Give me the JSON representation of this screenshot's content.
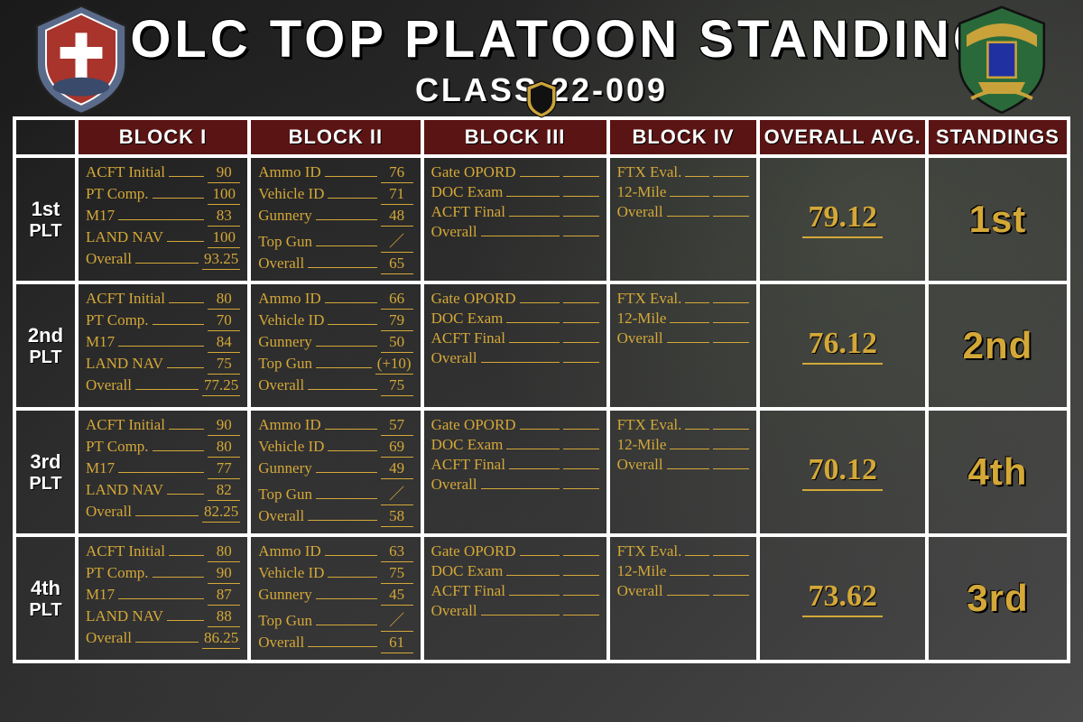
{
  "header": {
    "title": "ABOLC TOP PLATOON STANDINGS",
    "subtitle": "CLASS 22-009"
  },
  "colors": {
    "header_bg": "#5a1414",
    "border": "#ffffff",
    "accent": "#d4a838",
    "page_bg": "#1e1e1e"
  },
  "columns": {
    "b1": "BLOCK I",
    "b2": "BLOCK II",
    "b3": "BLOCK III",
    "b4": "BLOCK IV",
    "avg": "OVERALL AVG.",
    "stand": "STANDINGS"
  },
  "block1_labels": [
    "ACFT Initial",
    "PT Comp.",
    "M17",
    "LAND NAV",
    "Overall"
  ],
  "block2_labels": [
    "Ammo ID",
    "Vehicle ID",
    "Gunnery",
    "Top Gun",
    "Overall"
  ],
  "block3_labels": [
    "Gate OPORD",
    "DOC Exam",
    "ACFT Final",
    "Overall"
  ],
  "block4_labels": [
    "FTX Eval.",
    "12-Mile",
    "Overall"
  ],
  "platoons": [
    {
      "name_l1": "1st",
      "name_l2": "PLT",
      "b1": [
        "90",
        "100",
        "83",
        "100",
        "93.25"
      ],
      "b2": [
        "76",
        "71",
        "48",
        "／",
        "65"
      ],
      "avg": "79.12",
      "standing": "1st"
    },
    {
      "name_l1": "2nd",
      "name_l2": "PLT",
      "b1": [
        "80",
        "70",
        "84",
        "75",
        "77.25"
      ],
      "b2": [
        "66",
        "79",
        "50",
        "(+10)",
        "75"
      ],
      "avg": "76.12",
      "standing": "2nd"
    },
    {
      "name_l1": "3rd",
      "name_l2": "PLT",
      "b1": [
        "90",
        "80",
        "77",
        "82",
        "82.25"
      ],
      "b2": [
        "57",
        "69",
        "49",
        "／",
        "58"
      ],
      "avg": "70.12",
      "standing": "4th"
    },
    {
      "name_l1": "4th",
      "name_l2": "PLT",
      "b1": [
        "80",
        "90",
        "87",
        "88",
        "86.25"
      ],
      "b2": [
        "63",
        "75",
        "45",
        "／",
        "61"
      ],
      "avg": "73.62",
      "standing": "3rd"
    }
  ]
}
